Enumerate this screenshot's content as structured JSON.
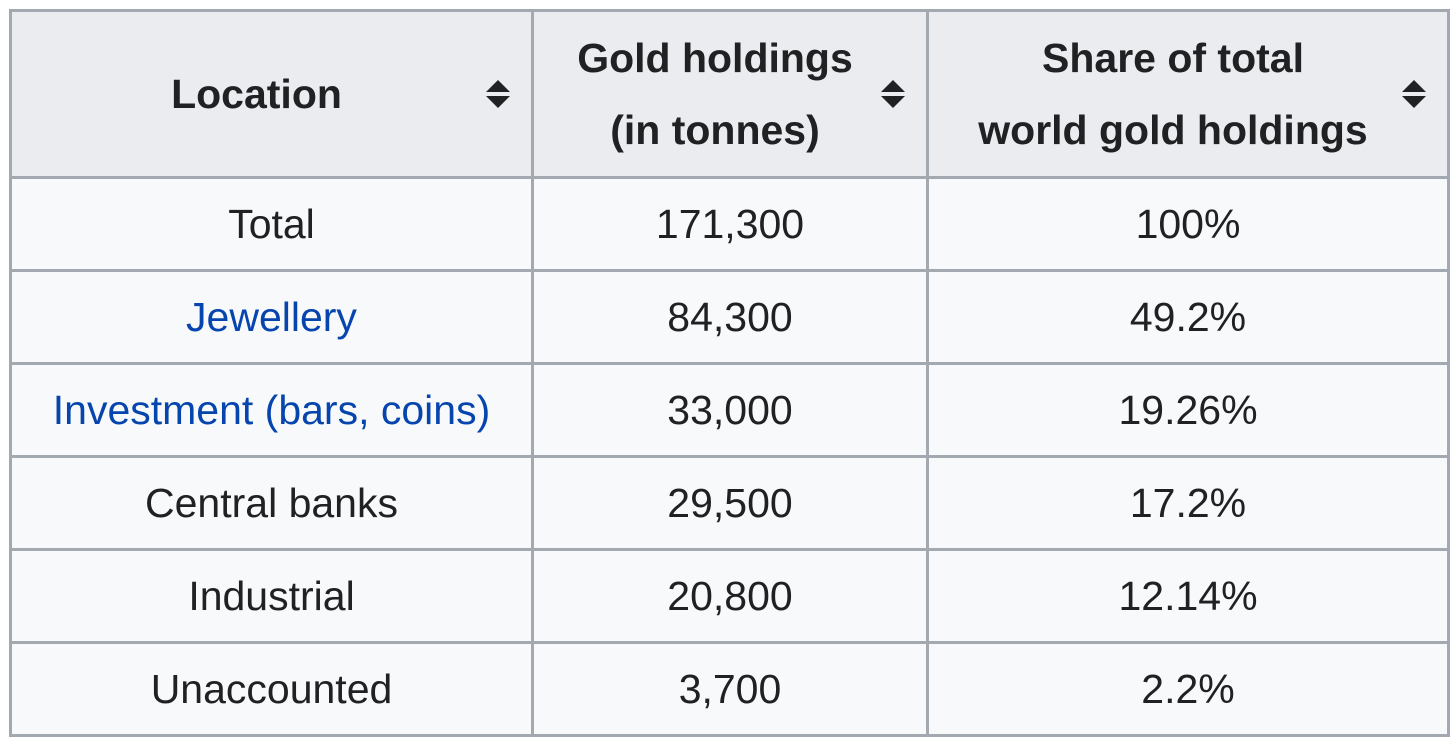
{
  "table": {
    "headers": [
      {
        "label_line1": "Location",
        "label_line2": "",
        "sort_icon": "sort-both-icon"
      },
      {
        "label_line1": "Gold holdings",
        "label_line2": "(in tonnes)",
        "sort_icon": "sort-both-icon"
      },
      {
        "label_line1": "Share of total",
        "label_line2": "world gold holdings",
        "sort_icon": "sort-both-icon"
      }
    ],
    "rows": [
      {
        "location": "Total",
        "is_link": false,
        "tonnes": "171,300",
        "share": "100%"
      },
      {
        "location": "Jewellery",
        "is_link": true,
        "tonnes": "84,300",
        "share": "49.2%"
      },
      {
        "location": "Investment (bars, coins)",
        "is_link": true,
        "tonnes": "33,000",
        "share": "19.26%"
      },
      {
        "location": "Central banks",
        "is_link": false,
        "tonnes": "29,500",
        "share": "17.2%"
      },
      {
        "location": "Industrial",
        "is_link": false,
        "tonnes": "20,800",
        "share": "12.14%"
      },
      {
        "location": "Unaccounted",
        "is_link": false,
        "tonnes": "3,700",
        "share": "2.2%"
      }
    ],
    "colors": {
      "header_bg": "#eaecf0",
      "cell_bg": "#f8f9fa",
      "border": "#a2a9b1",
      "text": "#202122",
      "link": "#0645ad"
    }
  }
}
